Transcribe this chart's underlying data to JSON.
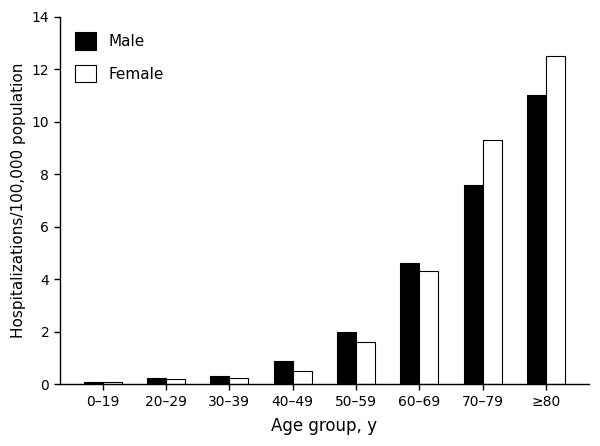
{
  "categories": [
    "0–19",
    "20–29",
    "30–39",
    "40–49",
    "50–59",
    "60–69",
    "70–79",
    "≥80"
  ],
  "male_values": [
    0.1,
    0.25,
    0.3,
    0.9,
    2.0,
    4.6,
    7.6,
    11.0
  ],
  "female_values": [
    0.1,
    0.2,
    0.25,
    0.5,
    1.6,
    4.3,
    9.3,
    12.5
  ],
  "male_color": "#000000",
  "female_color": "#ffffff",
  "bar_edge_color": "#000000",
  "ylabel": "Hospitalizations/100,000 population",
  "xlabel": "Age group, y",
  "ylim": [
    0,
    14
  ],
  "yticks": [
    0,
    2,
    4,
    6,
    8,
    10,
    12,
    14
  ],
  "legend_labels": [
    "Male",
    "Female"
  ],
  "bar_width": 0.3,
  "background_color": "#ffffff",
  "tick_fontsize": 10,
  "label_fontsize": 11,
  "xlabel_fontsize": 12
}
